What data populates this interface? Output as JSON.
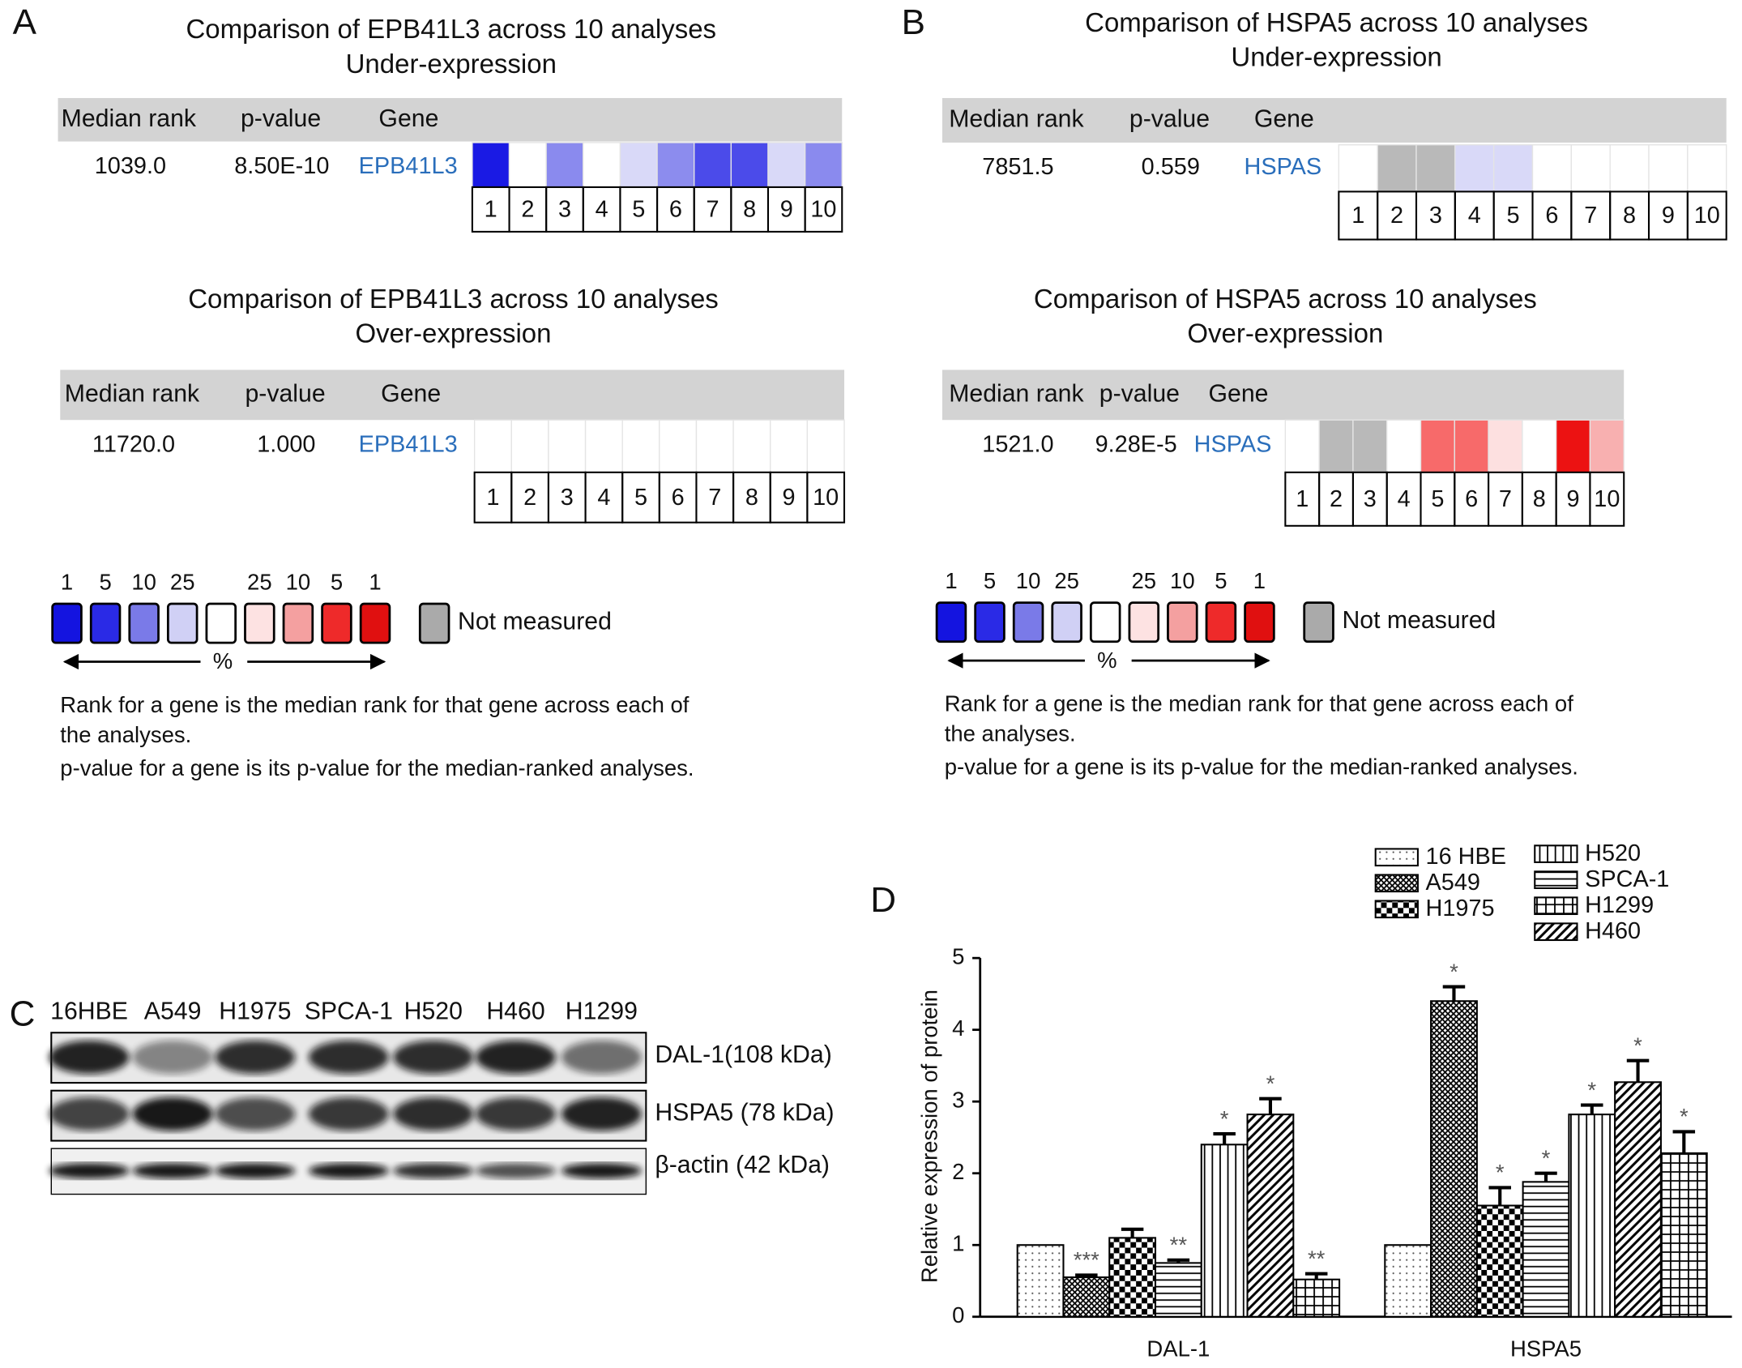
{
  "panel_a": {
    "label": "A",
    "sections": [
      {
        "title": [
          "Comparison of EPB41L3 across 10 analyses",
          "Under-expression"
        ],
        "headers": [
          "Median rank",
          "p-value",
          "Gene"
        ],
        "median_rank": "1039.0",
        "p_value": "8.50E-10",
        "gene": "EPB41L3",
        "cells": [
          "#1a1ae4",
          "#ffffff",
          "#8a8aee",
          "#ffffff",
          "#d9d9f8",
          "#8c8cee",
          "#4b4bea",
          "#4b4bea",
          "#d9d9f8",
          "#8a8aee"
        ],
        "columns": [
          1,
          2,
          3,
          4,
          5,
          6,
          7,
          8,
          9,
          10
        ]
      },
      {
        "title": [
          "Comparison of EPB41L3 across 10 analyses",
          "Over-expression"
        ],
        "headers": [
          "Median rank",
          "p-value",
          "Gene"
        ],
        "median_rank": "11720.0",
        "p_value": "1.000",
        "gene": "EPB41L3",
        "cells": [
          "#ffffff",
          "#ffffff",
          "#ffffff",
          "#ffffff",
          "#ffffff",
          "#ffffff",
          "#ffffff",
          "#ffffff",
          "#ffffff",
          "#ffffff"
        ],
        "columns": [
          1,
          2,
          3,
          4,
          5,
          6,
          7,
          8,
          9,
          10
        ]
      }
    ]
  },
  "panel_b": {
    "label": "B",
    "sections": [
      {
        "title": [
          "Comparison of HSPA5 across 10 analyses",
          "Under-expression"
        ],
        "headers": [
          "Median rank",
          "p-value",
          "Gene"
        ],
        "median_rank": "7851.5",
        "p_value": "0.559",
        "gene": "HSPAS",
        "cells": [
          "#ffffff",
          "#b9b9b9",
          "#b9b9b9",
          "#d9d9f8",
          "#d9d9f8",
          "#ffffff",
          "#ffffff",
          "#ffffff",
          "#ffffff",
          "#ffffff"
        ],
        "columns": [
          1,
          2,
          3,
          4,
          5,
          6,
          7,
          8,
          9,
          10
        ]
      },
      {
        "title": [
          "Comparison of HSPA5 across 10 analyses",
          "Over-expression"
        ],
        "headers": [
          "Median rank",
          "p-value",
          "Gene"
        ],
        "median_rank": "1521.0",
        "p_value": "9.28E-5",
        "gene": "HSPAS",
        "cells": [
          "#ffffff",
          "#b9b9b9",
          "#b9b9b9",
          "#ffffff",
          "#f76a6a",
          "#f76a6a",
          "#fde0e0",
          "#ffffff",
          "#ec1212",
          "#f8b0b0"
        ],
        "columns": [
          1,
          2,
          3,
          4,
          5,
          6,
          7,
          8,
          9,
          10
        ]
      }
    ]
  },
  "legend": {
    "percent_labels": [
      1,
      5,
      10,
      25,
      25,
      10,
      5,
      1
    ],
    "swatch_colors": [
      "#1414e0",
      "#2a2ae6",
      "#7a7ae8",
      "#d0d0f5",
      "#ffffff",
      "#fde2e2",
      "#f4a0a0",
      "#ee2a2a",
      "#e01010"
    ],
    "not_measured_color": "#aaaaaa",
    "not_measured": "Not measured",
    "unit": "%",
    "notes": [
      "Rank for a gene is the median rank for that gene across each of",
      "the analyses.",
      "p-value for a gene is its p-value for the median-ranked analyses."
    ]
  },
  "panel_c": {
    "label": "C",
    "lanes": [
      "16HBE",
      "A549",
      "H1975",
      "SPCA-1",
      "H520",
      "H460",
      "H1299"
    ],
    "bands": [
      "DAL-1(108 kDa)",
      "HSPA5 (78 kDa)",
      "β-actin (42 kDa)"
    ]
  },
  "chart_data": {
    "type": "bar",
    "panel_label": "D",
    "y_label": "Relative expression of protein",
    "categories": [
      "DAL-1",
      "HSPA5"
    ],
    "ylim": [
      0,
      5
    ],
    "yticks": [
      0,
      1,
      2,
      3,
      4,
      5
    ],
    "series": [
      {
        "name": "16 HBE",
        "color": "#000000",
        "pattern": "dots",
        "values": [
          1.0,
          1.0
        ],
        "errors": [
          0,
          0
        ],
        "annotations": [
          null,
          null
        ]
      },
      {
        "name": "A549",
        "color": "#000000",
        "pattern": "crosshatch",
        "values": [
          0.55,
          4.4
        ],
        "errors": [
          0.03,
          0.2
        ],
        "annotations": [
          "***",
          "*"
        ]
      },
      {
        "name": "H1975",
        "color": "#000000",
        "pattern": "checker",
        "values": [
          1.1,
          1.55
        ],
        "errors": [
          0.12,
          0.25
        ],
        "annotations": [
          null,
          "*"
        ]
      },
      {
        "name": "SPCA-1",
        "color": "#000000",
        "pattern": "hlines",
        "values": [
          0.75,
          1.88
        ],
        "errors": [
          0.04,
          0.12
        ],
        "annotations": [
          "**",
          "*"
        ]
      },
      {
        "name": "H520",
        "color": "#000000",
        "pattern": "vlines",
        "values": [
          2.4,
          2.82
        ],
        "errors": [
          0.15,
          0.13
        ],
        "annotations": [
          "*",
          "*"
        ]
      },
      {
        "name": "H460",
        "color": "#000000",
        "pattern": "diagonal",
        "values": [
          2.82,
          3.27
        ],
        "errors": [
          0.22,
          0.3
        ],
        "annotations": [
          "*",
          "*"
        ]
      },
      {
        "name": "H1299",
        "color": "#000000",
        "pattern": "grid",
        "values": [
          0.52,
          2.28
        ],
        "errors": [
          0.08,
          0.3
        ],
        "annotations": [
          "**",
          "*"
        ]
      }
    ]
  }
}
